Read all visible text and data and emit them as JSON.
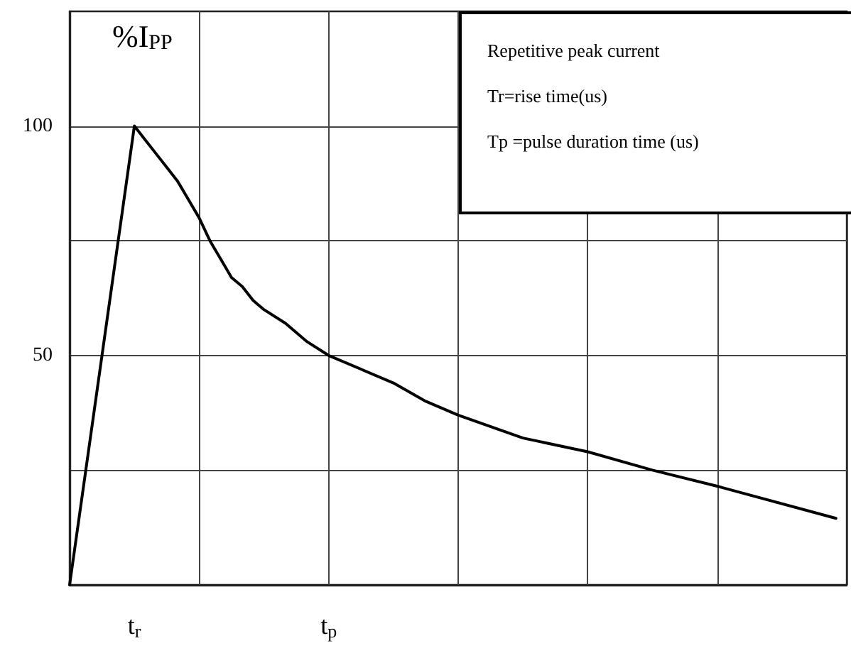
{
  "chart_data": {
    "type": "line",
    "ylabel": "%I$_{PP}$",
    "annotations": [
      "Repetitive peak current",
      "Tr=rise time(us)",
      "Tp =pulse duration time (us)"
    ],
    "categories": [
      null,
      null,
      null,
      null,
      null,
      null,
      "t$_{r}$",
      null,
      null,
      null,
      null,
      null,
      null,
      null,
      null,
      null,
      null,
      null,
      null,
      null,
      null,
      null,
      null,
      null,
      "t$_{p}$",
      null,
      null,
      null,
      null,
      null,
      null,
      null,
      null,
      null,
      null,
      null,
      null,
      null,
      null,
      null,
      null,
      null,
      null,
      null,
      null,
      null,
      null,
      null,
      null,
      null,
      null,
      null,
      null,
      null,
      null,
      null,
      null,
      null,
      null,
      null,
      null,
      null,
      null,
      null,
      null,
      null,
      null,
      null,
      null,
      null,
      null,
      null,
      null
    ],
    "series": [
      {
        "color": "#000000",
        "values": [
          0,
          null,
          null,
          null,
          null,
          null,
          100,
          97,
          94,
          91,
          88,
          84,
          80,
          75,
          71,
          67,
          65,
          62,
          60,
          null,
          57,
          55,
          53,
          null,
          50,
          null,
          null,
          null,
          null,
          null,
          44,
          null,
          null,
          40,
          null,
          null,
          37,
          null,
          null,
          null,
          null,
          null,
          32,
          null,
          null,
          null,
          null,
          null,
          29,
          null,
          null,
          null,
          null,
          null,
          25,
          null,
          null,
          null,
          null,
          null,
          21.5,
          null,
          null,
          null,
          null,
          null,
          null,
          null,
          null,
          null,
          null,
          14.5,
          null
        ]
      }
    ],
    "ylim": [
      0,
      125
    ],
    "yticks": [
      {
        "value": 0,
        "label": null
      },
      {
        "value": 25,
        "label": null
      },
      50,
      {
        "value": 75,
        "label": null
      },
      100
    ],
    "grid": true
  }
}
